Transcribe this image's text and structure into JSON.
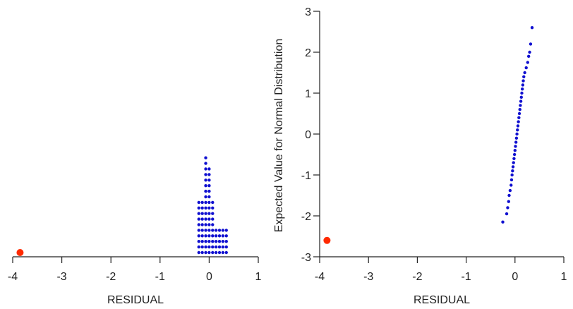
{
  "chart_data": [
    {
      "type": "dotplot",
      "xlabel": "RESIDUAL",
      "xlim": [
        -4,
        1
      ],
      "xticks": [
        -4,
        -3,
        -2,
        -1,
        0,
        1
      ],
      "xtick_labels": [
        "-4",
        "-3",
        "-2",
        "-1",
        "0",
        "1"
      ],
      "columns": [
        {
          "x": -0.21,
          "count": 10
        },
        {
          "x": -0.14,
          "count": 10
        },
        {
          "x": -0.07,
          "count": 18
        },
        {
          "x": 0.0,
          "count": 16
        },
        {
          "x": 0.07,
          "count": 10
        },
        {
          "x": 0.14,
          "count": 5
        },
        {
          "x": 0.21,
          "count": 5
        },
        {
          "x": 0.28,
          "count": 5
        },
        {
          "x": 0.35,
          "count": 5
        }
      ],
      "outlier": {
        "x": -3.85,
        "count": 1
      },
      "colors": {
        "points": "#1010d0",
        "outlier": "#ff2a00"
      }
    },
    {
      "type": "scatter",
      "xlabel": "RESIDUAL",
      "ylabel": "Expected Value for Normal Distribution",
      "xlim": [
        -4,
        1
      ],
      "ylim": [
        -3,
        3
      ],
      "xticks": [
        -4,
        -3,
        -2,
        -1,
        0,
        1
      ],
      "xtick_labels": [
        "-4",
        "-3",
        "-2",
        "-1",
        "0",
        "1"
      ],
      "yticks": [
        -3,
        -2,
        -1,
        0,
        1,
        2,
        3
      ],
      "ytick_labels": [
        "-3",
        "-2",
        "-1",
        "0",
        "1",
        "2",
        "3"
      ],
      "points": [
        [
          -0.25,
          -2.15
        ],
        [
          -0.17,
          -1.95
        ],
        [
          -0.15,
          -1.8
        ],
        [
          -0.13,
          -1.65
        ],
        [
          -0.12,
          -1.5
        ],
        [
          -0.1,
          -1.38
        ],
        [
          -0.08,
          -1.25
        ],
        [
          -0.07,
          -1.12
        ],
        [
          -0.06,
          -1.0
        ],
        [
          -0.05,
          -0.9
        ],
        [
          -0.04,
          -0.8
        ],
        [
          -0.03,
          -0.7
        ],
        [
          -0.02,
          -0.6
        ],
        [
          -0.01,
          -0.5
        ],
        [
          0.0,
          -0.4
        ],
        [
          0.01,
          -0.3
        ],
        [
          0.02,
          -0.2
        ],
        [
          0.03,
          -0.1
        ],
        [
          0.04,
          0.0
        ],
        [
          0.05,
          0.1
        ],
        [
          0.06,
          0.2
        ],
        [
          0.07,
          0.3
        ],
        [
          0.08,
          0.4
        ],
        [
          0.09,
          0.5
        ],
        [
          0.1,
          0.6
        ],
        [
          0.11,
          0.7
        ],
        [
          0.12,
          0.8
        ],
        [
          0.13,
          0.9
        ],
        [
          0.14,
          1.0
        ],
        [
          0.15,
          1.1
        ],
        [
          0.16,
          1.2
        ],
        [
          0.17,
          1.3
        ],
        [
          0.18,
          1.4
        ],
        [
          0.2,
          1.5
        ],
        [
          0.23,
          1.62
        ],
        [
          0.26,
          1.75
        ],
        [
          0.28,
          1.9
        ],
        [
          0.3,
          2.0
        ],
        [
          0.32,
          2.2
        ],
        [
          0.35,
          2.6
        ]
      ],
      "outlier": [
        -3.85,
        -2.6
      ],
      "colors": {
        "points": "#1010d0",
        "outlier": "#ff2a00"
      }
    }
  ]
}
